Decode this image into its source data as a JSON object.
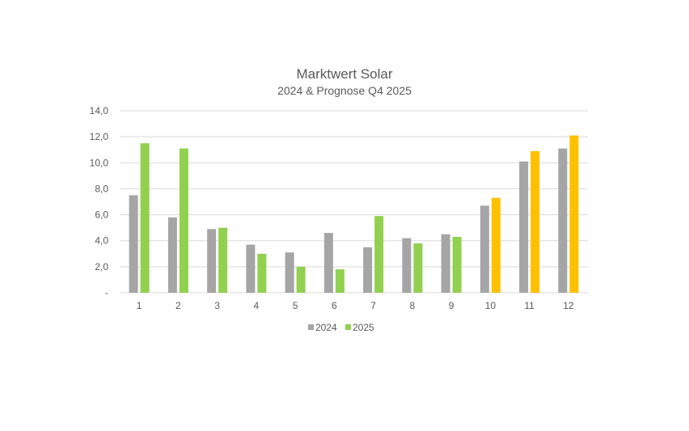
{
  "colors": {
    "series_2024": "#a5a5a5",
    "series_2025": "#92d050",
    "forecast_2025": "#ffc000",
    "gridline": "#d9d9d9",
    "text": "#595959"
  },
  "chart_data": {
    "type": "bar",
    "title": "Marktwert Solar",
    "subtitle": "2024 & Prognose Q4 2025",
    "categories": [
      "1",
      "2",
      "3",
      "4",
      "5",
      "6",
      "7",
      "8",
      "9",
      "10",
      "11",
      "12"
    ],
    "series": [
      {
        "name": "2024",
        "values": [
          7.5,
          5.8,
          4.9,
          3.7,
          3.1,
          4.6,
          3.5,
          4.2,
          4.5,
          6.7,
          10.1,
          11.1
        ]
      },
      {
        "name": "2025",
        "values": [
          11.5,
          11.1,
          5.0,
          3.0,
          2.0,
          1.8,
          5.9,
          3.8,
          4.3,
          7.3,
          10.9,
          12.1
        ]
      }
    ],
    "forecast_months": [
      "10",
      "11",
      "12"
    ],
    "ylim": [
      0,
      14
    ],
    "yticks": [
      0,
      2,
      4,
      6,
      8,
      10,
      12,
      14
    ],
    "ytick_labels": [
      "-",
      "2,0",
      "4,0",
      "6,0",
      "8,0",
      "10,0",
      "12,0",
      "14,0"
    ],
    "grid": true,
    "legend_position": "bottom"
  }
}
